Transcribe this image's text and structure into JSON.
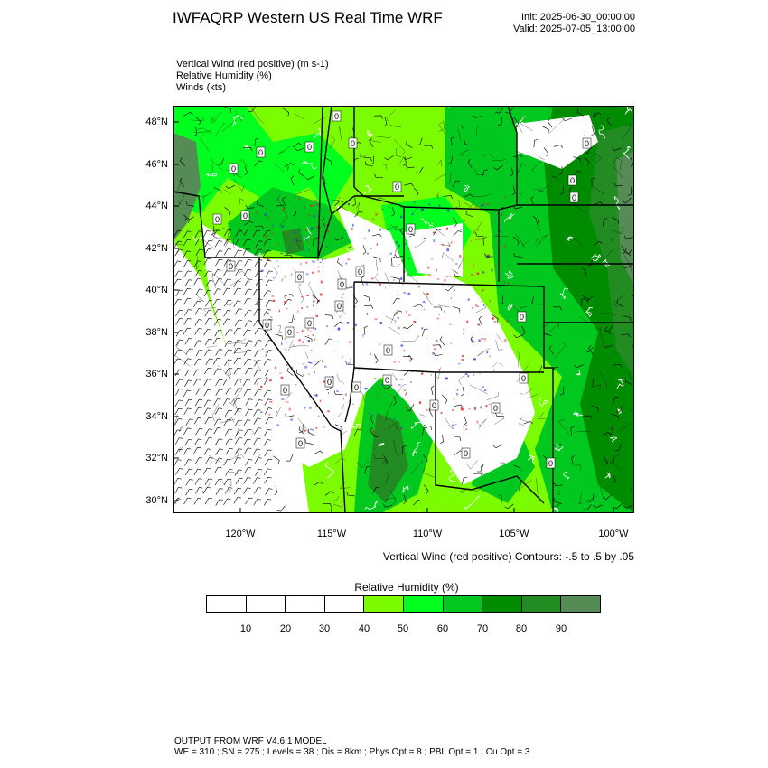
{
  "header": {
    "title": "IWFAQRP Western US Real Time WRF",
    "init": "Init: 2025-06-30_00:00:00",
    "valid": "Valid: 2025-07-05_13:00:00"
  },
  "fields": [
    "Vertical Wind (red positive)   (m s-1)",
    "Relative Humidity   (%)",
    "Winds   (kts)"
  ],
  "map": {
    "lat_labels": [
      "48°N",
      "46°N",
      "44°N",
      "42°N",
      "40°N",
      "38°N",
      "36°N",
      "34°N",
      "32°N",
      "30°N"
    ],
    "lon_labels": [
      "120°W",
      "115°W",
      "110°W",
      "105°W",
      "100°W"
    ],
    "contour_label": "0",
    "contour_note": "Vertical Wind (red positive) Contours: -.5 to .5 by .05"
  },
  "legend": {
    "title": "Relative Humidity  (%)",
    "colors": [
      "#ffffff",
      "#ffffff",
      "#ffffff",
      "#ffffff",
      "#7cfc00",
      "#00ff1e",
      "#00c81e",
      "#008c00",
      "#228b22",
      "#558b55"
    ],
    "labels": [
      "10",
      "20",
      "30",
      "40",
      "50",
      "60",
      "70",
      "80",
      "90"
    ]
  },
  "footer": {
    "line1": "OUTPUT FROM WRF V4.6.1 MODEL",
    "line2": "WE = 310 ; SN = 275 ; Levels = 38 ; Dis = 8km ; Phys Opt = 8 ; PBL Opt = 1 ; Cu Opt = 3"
  }
}
